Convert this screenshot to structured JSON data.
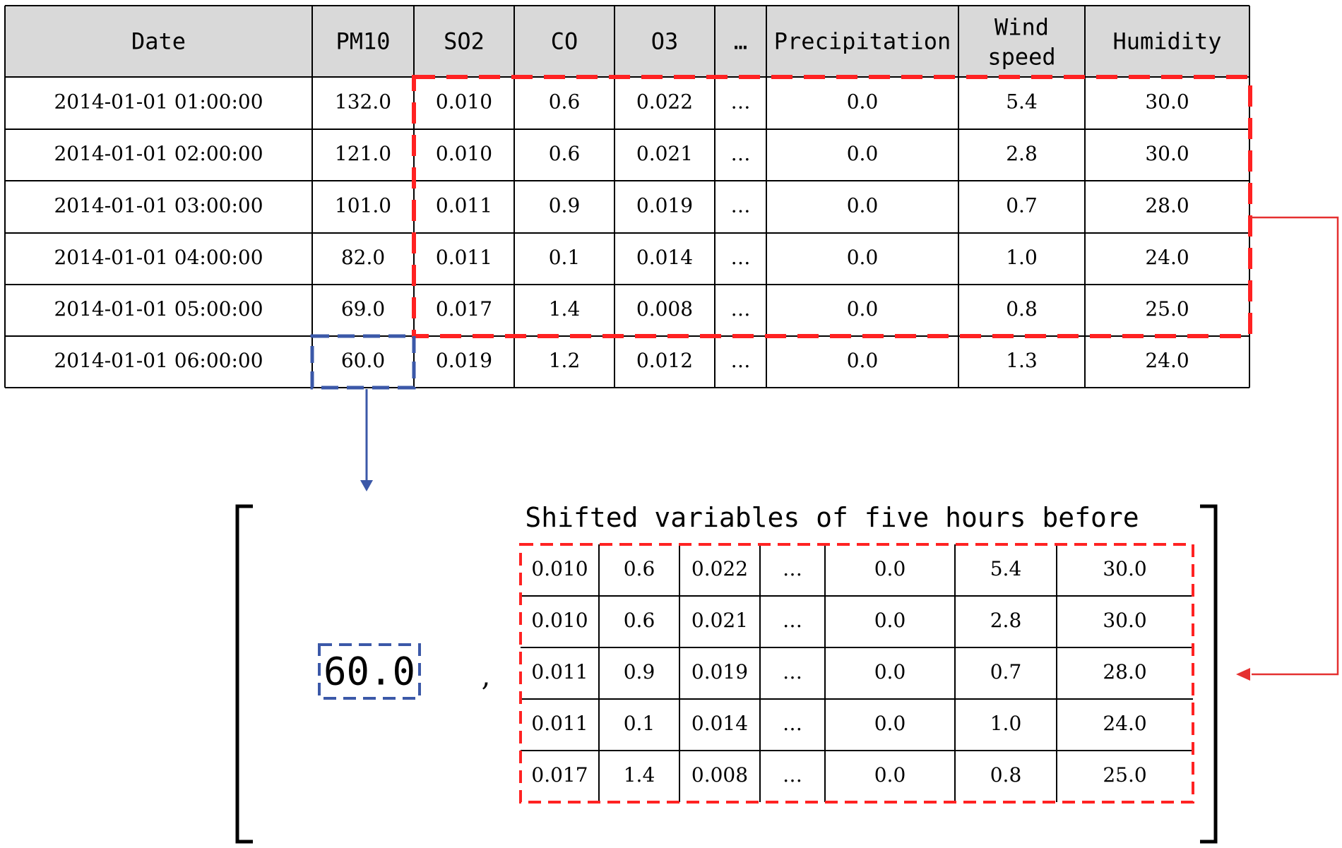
{
  "table": {
    "headers": [
      "Date",
      "PM10",
      "SO2",
      "CO",
      "O3",
      "…",
      "Precipitation",
      [
        "Wind",
        "speed"
      ],
      "Humidity"
    ],
    "rows": [
      [
        "2014-01-01 01:00:00",
        "132.0",
        "0.010",
        "0.6",
        "0.022",
        "…",
        "0.0",
        "5.4",
        "30.0"
      ],
      [
        "2014-01-01 02:00:00",
        "121.0",
        "0.010",
        "0.6",
        "0.021",
        "…",
        "0.0",
        "2.8",
        "30.0"
      ],
      [
        "2014-01-01 03:00:00",
        "101.0",
        "0.011",
        "0.9",
        "0.019",
        "…",
        "0.0",
        "0.7",
        "28.0"
      ],
      [
        "2014-01-01 04:00:00",
        "82.0",
        "0.011",
        "0.1",
        "0.014",
        "…",
        "0.0",
        "1.0",
        "24.0"
      ],
      [
        "2014-01-01 05:00:00",
        "69.0",
        "0.017",
        "1.4",
        "0.008",
        "…",
        "0.0",
        "0.8",
        "25.0"
      ],
      [
        "2014-01-01 06:00:00",
        "60.0",
        "0.019",
        "1.2",
        "0.012",
        "…",
        "0.0",
        "1.3",
        "24.0"
      ]
    ]
  },
  "result": {
    "target_value": "60.0",
    "separator": ",",
    "shifted_title": "Shifted variables of five hours before",
    "shifted_rows": [
      [
        "0.010",
        "0.6",
        "0.022",
        "…",
        "0.0",
        "5.4",
        "30.0"
      ],
      [
        "0.010",
        "0.6",
        "0.021",
        "…",
        "0.0",
        "2.8",
        "30.0"
      ],
      [
        "0.011",
        "0.9",
        "0.019",
        "…",
        "0.0",
        "0.7",
        "28.0"
      ],
      [
        "0.011",
        "0.1",
        "0.014",
        "…",
        "0.0",
        "1.0",
        "24.0"
      ],
      [
        "0.017",
        "1.4",
        "0.008",
        "…",
        "0.0",
        "0.8",
        "25.0"
      ]
    ]
  },
  "colors": {
    "header_fill": "#d9d9d9",
    "highlight_red": "#ff2222",
    "highlight_blue": "#3b58a8",
    "arrow_red": "#e53030",
    "arrow_blue": "#3b58a8",
    "line": "#000000"
  }
}
